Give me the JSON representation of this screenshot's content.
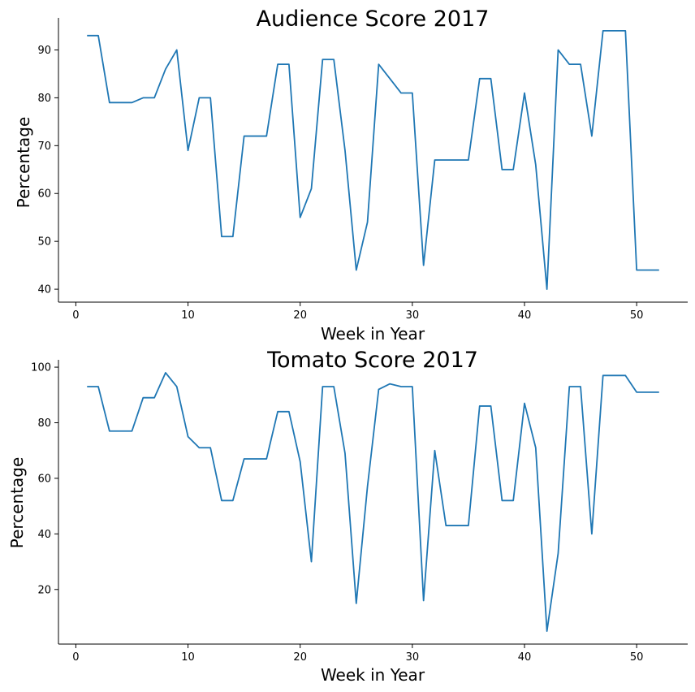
{
  "chart_data": [
    {
      "type": "line",
      "title": "Audience Score 2017",
      "xlabel": "Week in Year",
      "ylabel": "Percentage",
      "xlim": [
        -1.55,
        54.55
      ],
      "ylim": [
        37.3,
        96.7
      ],
      "xticks": [
        0,
        10,
        20,
        30,
        40,
        50
      ],
      "yticks": [
        40,
        50,
        60,
        70,
        80,
        90
      ],
      "grid": false,
      "x": [
        1,
        2,
        3,
        4,
        5,
        6,
        7,
        8,
        9,
        10,
        11,
        12,
        13,
        14,
        15,
        16,
        17,
        18,
        19,
        20,
        21,
        22,
        23,
        24,
        25,
        26,
        27,
        28,
        29,
        30,
        31,
        32,
        33,
        34,
        35,
        36,
        37,
        38,
        39,
        40,
        41,
        42,
        43,
        44,
        45,
        46,
        47,
        48,
        49,
        50,
        51,
        52
      ],
      "series": [
        {
          "color": "#1f77b4",
          "values": [
            93,
            93,
            79,
            79,
            79,
            80,
            80,
            86,
            90,
            69,
            80,
            80,
            51,
            51,
            72,
            72,
            72,
            87,
            87,
            55,
            61,
            88,
            88,
            69,
            44,
            54,
            87,
            84,
            81,
            81,
            45,
            67,
            67,
            67,
            67,
            84,
            84,
            65,
            65,
            81,
            66,
            40,
            90,
            87,
            87,
            72,
            94,
            94,
            94,
            44,
            44,
            44
          ]
        }
      ]
    },
    {
      "type": "line",
      "title": "Tomato Score 2017",
      "xlabel": "Week in Year",
      "ylabel": "Percentage",
      "xlim": [
        -1.55,
        54.55
      ],
      "ylim": [
        0.35,
        102.65
      ],
      "xticks": [
        0,
        10,
        20,
        30,
        40,
        50
      ],
      "yticks": [
        20,
        40,
        60,
        80,
        100
      ],
      "grid": false,
      "x": [
        1,
        2,
        3,
        4,
        5,
        6,
        7,
        8,
        9,
        10,
        11,
        12,
        13,
        14,
        15,
        16,
        17,
        18,
        19,
        20,
        21,
        22,
        23,
        24,
        25,
        26,
        27,
        28,
        29,
        30,
        31,
        32,
        33,
        34,
        35,
        36,
        37,
        38,
        39,
        40,
        41,
        42,
        43,
        44,
        45,
        46,
        47,
        48,
        49,
        50,
        51,
        52
      ],
      "series": [
        {
          "color": "#1f77b4",
          "values": [
            93,
            93,
            77,
            77,
            77,
            89,
            89,
            98,
            93,
            75,
            71,
            71,
            52,
            52,
            67,
            67,
            67,
            84,
            84,
            66,
            30,
            93,
            93,
            69,
            15,
            57,
            92,
            94,
            93,
            93,
            16,
            70,
            43,
            43,
            43,
            86,
            86,
            52,
            52,
            87,
            71,
            5,
            33,
            93,
            93,
            40,
            97,
            97,
            97,
            91,
            91,
            91
          ]
        }
      ]
    }
  ]
}
